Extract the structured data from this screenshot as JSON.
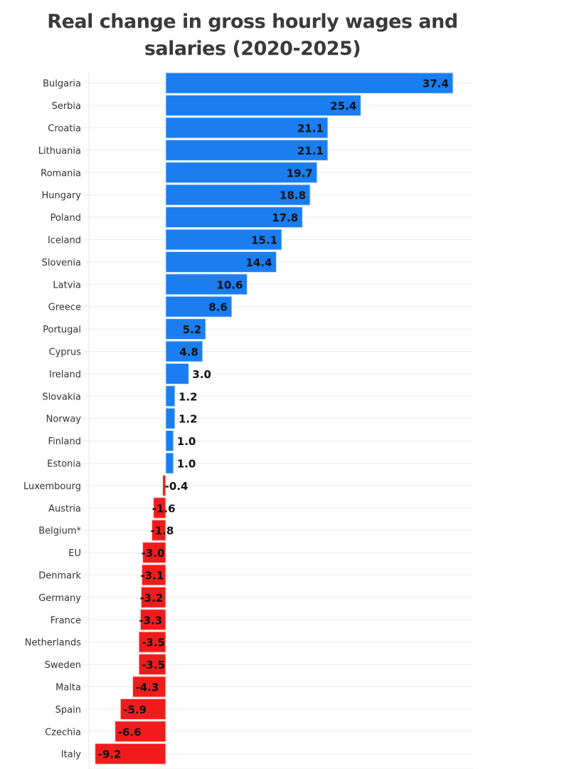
{
  "chart_data": {
    "type": "bar",
    "orientation": "horizontal",
    "title": "Real change in gross hourly wages and salaries (2020-2025)",
    "xlabel": "",
    "ylabel": "",
    "xlim": [
      -10,
      40
    ],
    "x_tick_step": 5,
    "x_tick_labels_visible": false,
    "grid": true,
    "legend": "none",
    "colors": {
      "positive": "#1a7ef0",
      "negative": "#f01c1c",
      "negative_small": "#d42a2a"
    },
    "categories": [
      "Bulgaria",
      "Serbia",
      "Croatia",
      "Lithuania",
      "Romania",
      "Hungary",
      "Poland",
      "Iceland",
      "Slovenia",
      "Latvia",
      "Greece",
      "Portugal",
      "Cyprus",
      "Ireland",
      "Slovakia",
      "Norway",
      "Finland",
      "Estonia",
      "Luxembourg",
      "Austria",
      "Belgium*",
      "EU",
      "Denmark",
      "Germany",
      "France",
      "Netherlands",
      "Sweden",
      "Malta",
      "Spain",
      "Czechia",
      "Italy"
    ],
    "values": [
      37.4,
      25.4,
      21.1,
      21.1,
      19.7,
      18.8,
      17.8,
      15.1,
      14.4,
      10.6,
      8.6,
      5.2,
      4.8,
      3.0,
      1.2,
      1.2,
      1.0,
      1.0,
      -0.4,
      -1.6,
      -1.8,
      -3.0,
      -3.1,
      -3.2,
      -3.3,
      -3.5,
      -3.5,
      -4.3,
      -5.9,
      -6.6,
      -9.2
    ],
    "value_labels": [
      "37.4",
      "25.4",
      "21.1",
      "21.1",
      "19.7",
      "18.8",
      "17.8",
      "15.1",
      "14.4",
      "10.6",
      "8.6",
      "5.2",
      "4.8",
      "3.0",
      "1.2",
      "1.2",
      "1.0",
      "1.0",
      "-0.4",
      "-1.6",
      "-1.8",
      "-3.0",
      "-3.1",
      "-3.2",
      "-3.3",
      "-3.5",
      "-3.5",
      "-4.3",
      "-5.9",
      "-6.6",
      "-9.2"
    ]
  }
}
